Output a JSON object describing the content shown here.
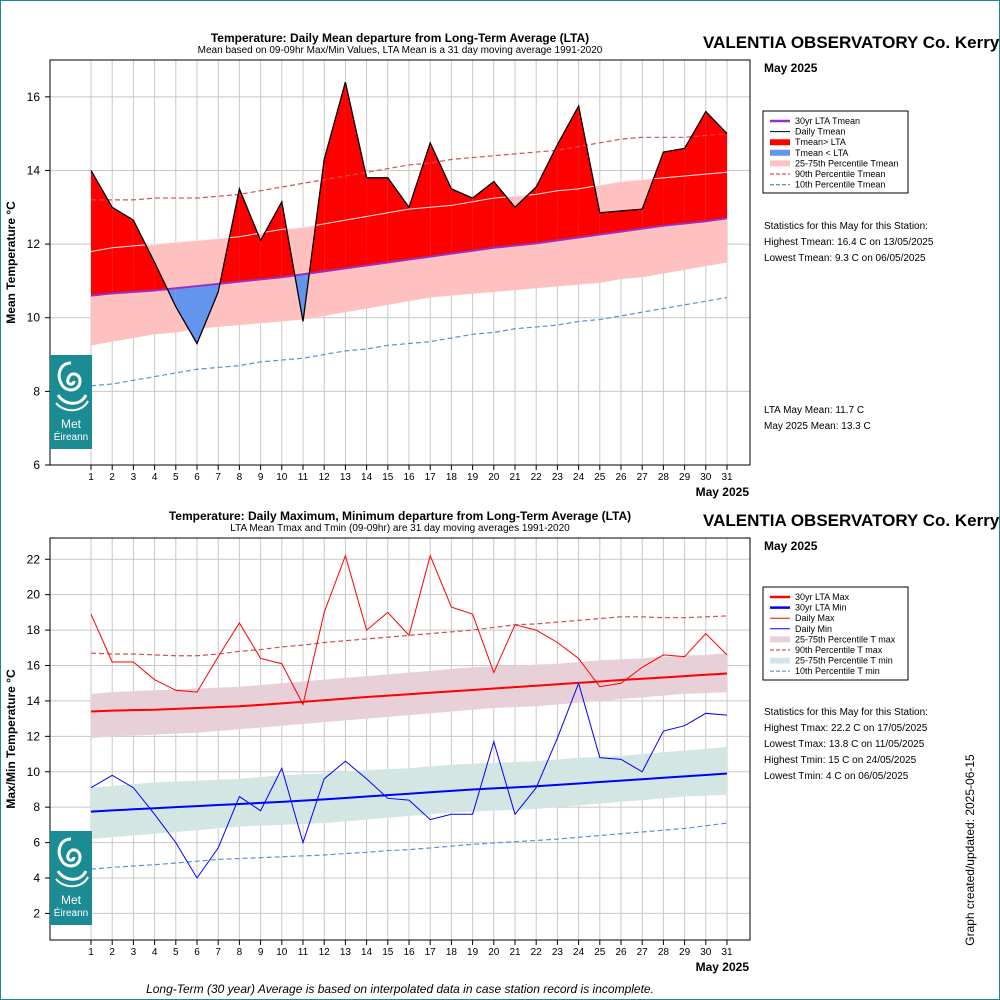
{
  "station": "VALENTIA OBSERVATORY Co. Kerry",
  "month_label": "May 2025",
  "footnote": "Long-Term (30 year) Average is based on interpolated data in case station record is incomplete.",
  "side_caption": "Graph created/updated:  2025-06-15",
  "logo": {
    "line1": "Met",
    "line2": "Éireann",
    "icon": "met-eireann-swirl-icon",
    "color": "#1b8b94"
  },
  "colors": {
    "above": "#ff0000",
    "below": "#6495ed",
    "lta_mean": "#9b30c0",
    "band_mean": "#ffc0c0",
    "p90": "#d05050",
    "p10": "#5b8fe0",
    "lta_max": "#ff0000",
    "lta_min": "#0000ff",
    "band_max": "#e8d0d8",
    "band_min": "#d4e6e4"
  },
  "chart_data": [
    {
      "type": "area",
      "title": "Temperature: Daily Mean departure from Long-Term Average (LTA)",
      "subtitle": "Mean based on 09-09hr Max/Min Values, LTA Mean is a 31 day moving average 1991-2020",
      "ylabel": "Mean Temperature °C",
      "xlabel": "May 2025",
      "ylim": [
        6,
        17
      ],
      "yticks": [
        6,
        8,
        10,
        12,
        14,
        16
      ],
      "x": [
        1,
        2,
        3,
        4,
        5,
        6,
        7,
        8,
        9,
        10,
        11,
        12,
        13,
        14,
        15,
        16,
        17,
        18,
        19,
        20,
        21,
        22,
        23,
        24,
        25,
        26,
        27,
        28,
        29,
        30,
        31
      ],
      "grid": true,
      "legend_position": "right",
      "legend": [
        "30yr LTA Tmean",
        "Daily Tmean",
        "Tmean> LTA",
        "Tmean < LTA",
        "25-75th Percentile Tmean",
        "90th Percentile Tmean",
        "10th Percentile Tmean"
      ],
      "series": [
        {
          "name": "Daily Tmean",
          "values": [
            14.0,
            13.0,
            12.65,
            11.5,
            10.3,
            9.3,
            10.7,
            13.5,
            12.1,
            13.15,
            9.9,
            14.3,
            16.4,
            13.8,
            13.8,
            13.0,
            14.75,
            13.5,
            13.25,
            13.7,
            13.0,
            13.55,
            14.7,
            15.75,
            12.85,
            12.9,
            12.95,
            14.5,
            14.6,
            15.6,
            15.0
          ]
        },
        {
          "name": "30yr LTA Tmean",
          "values": [
            10.6,
            10.66,
            10.7,
            10.74,
            10.8,
            10.86,
            10.92,
            10.98,
            11.04,
            11.1,
            11.18,
            11.26,
            11.34,
            11.42,
            11.5,
            11.58,
            11.66,
            11.74,
            11.82,
            11.9,
            11.96,
            12.02,
            12.1,
            12.18,
            12.26,
            12.34,
            12.42,
            12.5,
            12.56,
            12.62,
            12.7
          ]
        },
        {
          "name": "25th Percentile Tmean",
          "values": [
            9.25,
            9.35,
            9.45,
            9.55,
            9.6,
            9.7,
            9.75,
            9.8,
            9.85,
            9.9,
            9.95,
            10.05,
            10.15,
            10.25,
            10.35,
            10.45,
            10.55,
            10.6,
            10.65,
            10.7,
            10.75,
            10.8,
            10.85,
            10.9,
            10.95,
            11.05,
            11.1,
            11.2,
            11.3,
            11.4,
            11.5
          ]
        },
        {
          "name": "75th Percentile Tmean",
          "values": [
            11.8,
            11.9,
            11.95,
            12.0,
            12.05,
            12.1,
            12.15,
            12.2,
            12.3,
            12.4,
            12.45,
            12.55,
            12.65,
            12.75,
            12.85,
            12.95,
            13.0,
            13.05,
            13.15,
            13.25,
            13.3,
            13.35,
            13.45,
            13.5,
            13.6,
            13.7,
            13.75,
            13.8,
            13.85,
            13.9,
            13.95
          ]
        },
        {
          "name": "90th Percentile Tmean",
          "values": [
            13.2,
            13.2,
            13.2,
            13.25,
            13.25,
            13.25,
            13.3,
            13.35,
            13.45,
            13.55,
            13.65,
            13.75,
            13.85,
            13.95,
            14.05,
            14.15,
            14.2,
            14.3,
            14.35,
            14.4,
            14.45,
            14.5,
            14.55,
            14.65,
            14.75,
            14.85,
            14.9,
            14.9,
            14.9,
            14.95,
            15.0
          ]
        },
        {
          "name": "10th Percentile Tmean",
          "values": [
            8.15,
            8.2,
            8.3,
            8.4,
            8.5,
            8.6,
            8.65,
            8.7,
            8.8,
            8.85,
            8.9,
            9.0,
            9.1,
            9.15,
            9.25,
            9.3,
            9.35,
            9.45,
            9.55,
            9.6,
            9.7,
            9.75,
            9.8,
            9.9,
            9.95,
            10.05,
            10.15,
            10.25,
            10.35,
            10.45,
            10.55
          ]
        }
      ],
      "stats": [
        "Statistics for this May for this Station:",
        "Highest Tmean: 16.4 C on 13/05/2025",
        "Lowest Tmean: 9.3 C on 06/05/2025"
      ],
      "means": [
        "LTA May Mean: 11.7 C",
        "May 2025 Mean: 13.3 C"
      ]
    },
    {
      "type": "line",
      "title": "Temperature: Daily Maximum, Minimum departure from Long-Term Average (LTA)",
      "subtitle": "LTA Mean Tmax and Tmin (09-09hr) are 31 day moving averages 1991-2020",
      "ylabel": "Max/Min Temperature °C",
      "xlabel": "May 2025",
      "ylim": [
        0.5,
        23.2
      ],
      "yticks": [
        2,
        4,
        6,
        8,
        10,
        12,
        14,
        16,
        18,
        20,
        22
      ],
      "x": [
        1,
        2,
        3,
        4,
        5,
        6,
        7,
        8,
        9,
        10,
        11,
        12,
        13,
        14,
        15,
        16,
        17,
        18,
        19,
        20,
        21,
        22,
        23,
        24,
        25,
        26,
        27,
        28,
        29,
        30,
        31
      ],
      "grid": true,
      "legend_position": "right",
      "legend": [
        "30yr LTA Max",
        "30yr LTA Min",
        "Daily Max",
        "Daily Min",
        "25-75th Percentile T max",
        "90th Percentile T max",
        "25-75th Percentile T min",
        "10th Percentile T min"
      ],
      "series": [
        {
          "name": "Daily Max",
          "values": [
            18.9,
            16.2,
            16.2,
            15.2,
            14.6,
            14.5,
            16.5,
            18.4,
            16.4,
            16.1,
            13.8,
            19.0,
            22.2,
            18.0,
            19.0,
            17.7,
            22.2,
            19.3,
            18.9,
            15.6,
            18.3,
            18.0,
            17.3,
            16.4,
            14.8,
            15.0,
            15.9,
            16.6,
            16.5,
            17.8,
            16.6
          ]
        },
        {
          "name": "Daily Min",
          "values": [
            9.1,
            9.8,
            9.1,
            7.6,
            6.0,
            4.0,
            5.7,
            8.6,
            7.8,
            10.2,
            6.0,
            9.6,
            10.6,
            9.6,
            8.5,
            8.4,
            7.3,
            7.6,
            7.6,
            11.7,
            7.6,
            9.1,
            11.9,
            15.0,
            10.8,
            10.7,
            10.0,
            12.3,
            12.6,
            13.3,
            13.2
          ]
        },
        {
          "name": "30yr LTA Max",
          "values": [
            13.4,
            13.45,
            13.48,
            13.5,
            13.55,
            13.6,
            13.65,
            13.7,
            13.78,
            13.86,
            13.95,
            14.04,
            14.13,
            14.22,
            14.3,
            14.38,
            14.46,
            14.54,
            14.62,
            14.7,
            14.78,
            14.86,
            14.94,
            15.02,
            15.1,
            15.18,
            15.25,
            15.32,
            15.4,
            15.48,
            15.55
          ]
        },
        {
          "name": "30yr LTA Min",
          "values": [
            7.75,
            7.82,
            7.88,
            7.94,
            8.0,
            8.06,
            8.12,
            8.18,
            8.24,
            8.3,
            8.37,
            8.44,
            8.52,
            8.6,
            8.68,
            8.76,
            8.84,
            8.92,
            9.0,
            9.06,
            9.12,
            9.18,
            9.26,
            9.34,
            9.42,
            9.5,
            9.58,
            9.66,
            9.74,
            9.82,
            9.9
          ]
        },
        {
          "name": "25th Percentile T max",
          "values": [
            11.9,
            12.0,
            12.05,
            12.1,
            12.15,
            12.2,
            12.3,
            12.4,
            12.5,
            12.6,
            12.7,
            12.8,
            12.9,
            13.0,
            13.1,
            13.2,
            13.3,
            13.4,
            13.5,
            13.6,
            13.65,
            13.7,
            13.8,
            13.9,
            14.0,
            14.1,
            14.2,
            14.3,
            14.4,
            14.45,
            14.5
          ]
        },
        {
          "name": "75th Percentile T max",
          "values": [
            14.4,
            14.5,
            14.55,
            14.6,
            14.65,
            14.7,
            14.75,
            14.8,
            14.9,
            15.0,
            15.1,
            15.2,
            15.3,
            15.4,
            15.5,
            15.6,
            15.7,
            15.8,
            15.9,
            15.95,
            16.0,
            16.05,
            16.1,
            16.2,
            16.3,
            16.35,
            16.4,
            16.5,
            16.55,
            16.6,
            16.7
          ]
        },
        {
          "name": "90th Percentile T max",
          "values": [
            16.7,
            16.65,
            16.65,
            16.6,
            16.55,
            16.55,
            16.65,
            16.8,
            16.9,
            17.05,
            17.15,
            17.3,
            17.4,
            17.5,
            17.6,
            17.7,
            17.8,
            17.9,
            18.0,
            18.15,
            18.3,
            18.35,
            18.45,
            18.55,
            18.65,
            18.75,
            18.75,
            18.7,
            18.7,
            18.75,
            18.8
          ]
        },
        {
          "name": "25th Percentile T min",
          "values": [
            6.2,
            6.3,
            6.4,
            6.5,
            6.6,
            6.7,
            6.8,
            6.9,
            6.95,
            7.0,
            7.05,
            7.1,
            7.2,
            7.3,
            7.4,
            7.5,
            7.6,
            7.7,
            7.75,
            7.8,
            7.85,
            7.9,
            8.0,
            8.1,
            8.2,
            8.3,
            8.4,
            8.5,
            8.6,
            8.65,
            8.7
          ]
        },
        {
          "name": "75th Percentile T min",
          "values": [
            9.1,
            9.2,
            9.3,
            9.4,
            9.45,
            9.5,
            9.55,
            9.6,
            9.7,
            9.8,
            9.85,
            9.9,
            10.0,
            10.1,
            10.15,
            10.2,
            10.3,
            10.4,
            10.45,
            10.5,
            10.55,
            10.6,
            10.7,
            10.8,
            10.85,
            10.9,
            11.0,
            11.1,
            11.2,
            11.3,
            11.4
          ]
        },
        {
          "name": "10th Percentile T min",
          "values": [
            4.5,
            4.6,
            4.68,
            4.75,
            4.85,
            4.95,
            5.05,
            5.1,
            5.15,
            5.2,
            5.25,
            5.3,
            5.38,
            5.45,
            5.55,
            5.6,
            5.7,
            5.8,
            5.9,
            5.98,
            6.05,
            6.12,
            6.2,
            6.3,
            6.4,
            6.5,
            6.6,
            6.7,
            6.8,
            6.95,
            7.1
          ]
        }
      ],
      "stats": [
        "Statistics for this May for this Station:",
        "Highest Tmax: 22.2 C on 17/05/2025",
        "Lowest Tmax: 13.8 C on 11/05/2025",
        "Highest Tmin: 15 C on 24/05/2025",
        "Lowest Tmin: 4 C on 06/05/2025"
      ]
    }
  ]
}
